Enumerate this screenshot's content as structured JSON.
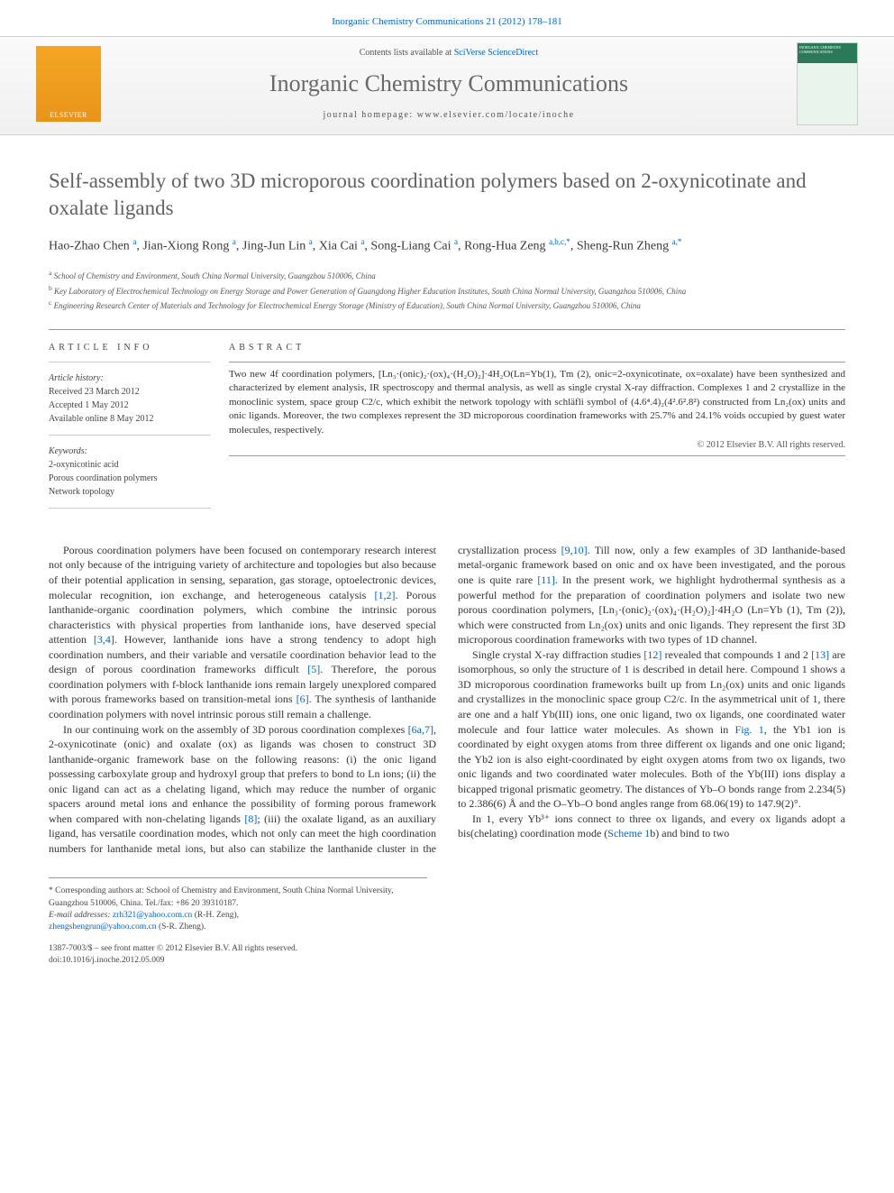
{
  "header": {
    "top_link": "Inorganic Chemistry Communications 21 (2012) 178–181",
    "contents_prefix": "Contents lists available at ",
    "contents_link": "SciVerse ScienceDirect",
    "journal_name": "Inorganic Chemistry Communications",
    "homepage": "journal homepage: www.elsevier.com/locate/inoche",
    "elsevier_label": "ELSEVIER",
    "cover_label": "INORGANIC CHEMISTRY COMMUNICATIONS"
  },
  "article": {
    "title": "Self-assembly of two 3D microporous coordination polymers based on 2-oxynicotinate and oxalate ligands",
    "authors_html": "Hao-Zhao Chen <sup>a</sup>, Jian-Xiong Rong <sup>a</sup>, Jing-Jun Lin <sup>a</sup>, Xia Cai <sup>a</sup>, Song-Liang Cai <sup>a</sup>, Rong-Hua Zeng <sup>a,b,c,*</sup>, Sheng-Run Zheng <sup>a,*</sup>",
    "affiliations": {
      "a": "School of Chemistry and Environment, South China Normal University, Guangzhou 510006, China",
      "b": "Key Laboratory of Electrochemical Technology on Energy Storage and Power Generation of Guangdong Higher Education Institutes, South China Normal University, Guangzhou 510006, China",
      "c": "Engineering Research Center of Materials and Technology for Electrochemical Energy Storage (Ministry of Education), South China Normal University, Guangzhou 510006, China"
    }
  },
  "info": {
    "head": "ARTICLE INFO",
    "history_label": "Article history:",
    "received": "Received 23 March 2012",
    "accepted": "Accepted 1 May 2012",
    "online": "Available online 8 May 2012",
    "keywords_label": "Keywords:",
    "kw1": "2-oxynicotinic acid",
    "kw2": "Porous coordination polymers",
    "kw3": "Network topology"
  },
  "abstract": {
    "head": "ABSTRACT",
    "text": "Two new 4f coordination polymers, [Ln₃·(onic)₂·(ox)₄·(H₂O)₂]·4H₂O(Ln=Yb(1), Tm (2), onic=2-oxynicotinate, ox=oxalate) have been synthesized and characterized by element analysis, IR spectroscopy and thermal analysis, as well as single crystal X-ray diffraction. Complexes 1 and 2 crystallize in the monoclinic system, space group C2/c, which exhibit the network topology with schläfli symbol of (4.6⁴.4)₂(4².6².8²) constructed from Ln₂(ox) units and onic ligands. Moreover, the two complexes represent the 3D microporous coordination frameworks with 25.7% and 24.1% voids occupied by guest water molecules, respectively.",
    "copyright": "© 2012 Elsevier B.V. All rights reserved."
  },
  "body": {
    "p1": "Porous coordination polymers have been focused on contemporary research interest not only because of the intriguing variety of architecture and topologies but also because of their potential application in sensing, separation, gas storage, optoelectronic devices, molecular recognition, ion exchange, and heterogeneous catalysis ",
    "ref1": "[1,2]",
    "p1b": ". Porous lanthanide-organic coordination polymers, which combine the intrinsic porous characteristics with physical properties from lanthanide ions, have deserved special attention ",
    "ref2": "[3,4]",
    "p1c": ". However, lanthanide ions have a strong tendency to adopt high coordination numbers, and their variable and versatile coordination behavior lead to the design of porous coordination frameworks difficult ",
    "ref3": "[5]",
    "p1d": ". Therefore, the porous coordination polymers with f-block lanthanide ions remain largely unexplored compared with porous frameworks based on transition-metal ions ",
    "ref4": "[6]",
    "p1e": ". The synthesis of lanthanide coordination polymers with novel intrinsic porous still remain a challenge.",
    "p2": "In our continuing work on the assembly of 3D porous coordination complexes ",
    "ref5": "[6a,7]",
    "p2b": ", 2-oxynicotinate (onic) and oxalate (ox) as ligands was chosen to construct 3D lanthanide-organic framework base on the following reasons: (i) the onic ligand possessing carboxylate group and hydroxyl group that prefers to bond to Ln ions; (ii) the onic ligand can act as a chelating ligand, which may reduce the number of organic spacers around metal ions and enhance the possibility of forming porous framework when compared with non-chelating ligands ",
    "ref6": "[8]",
    "p2c": "; (iii) the oxalate ligand, as an auxiliary ligand, has versatile coordination modes, which not only can meet the high coordination numbers for lanthanide metal ions, but also can stabilize the lanthanide cluster in the crystallization process ",
    "ref7": "[9,10]",
    "p2d": ". Till now, only a few examples of 3D lanthanide-based metal-organic framework based on onic and ox have been investigated, and the porous one is quite rare ",
    "ref8": "[11]",
    "p2e": ". In the present work, we highlight hydrothermal synthesis as a powerful method for the preparation of coordination polymers and isolate two new porous coordination polymers, [Ln₃·(onic)₂·(ox)₄·(H₂O)₂]·4H₂O (Ln=Yb (1), Tm (2)), which were constructed from Ln₂(ox) units and onic ligands. They represent the first 3D microporous coordination frameworks with two types of 1D channel.",
    "p3": "Single crystal X-ray diffraction studies ",
    "ref9": "[12]",
    "p3b": " revealed that compounds 1 and 2 ",
    "ref10": "[13]",
    "p3c": " are isomorphous, so only the structure of 1 is described in detail here. Compound 1 shows a 3D microporous coordination frameworks built up from Ln₂(ox) units and onic ligands and crystallizes in the monoclinic space group C2/c. In the asymmetrical unit of 1, there are one and a half Yb(III) ions, one onic ligand, two ox ligands, one coordinated water molecule and four lattice water molecules. As shown in ",
    "fig1": "Fig. 1",
    "p3d": ", the Yb1 ion is coordinated by eight oxygen atoms from three different ox ligands and one onic ligand; the Yb2 ion is also eight-coordinated by eight oxygen atoms from two ox ligands, two onic ligands and two coordinated water molecules. Both of the Yb(III) ions display a bicapped trigonal prismatic geometry. The distances of Yb–O bonds range from 2.234(5) to 2.386(6) Å and the O–Yb–O bond angles range from 68.06(19) to 147.9(2)°.",
    "p4": "In 1, every Yb³⁺ ions connect to three ox ligands, and every ox ligands adopt a bis(chelating) coordination mode (",
    "scheme1": "Scheme 1",
    "p4b": "b) and bind to two"
  },
  "footer": {
    "corr": "* Corresponding authors at: School of Chemistry and Environment, South China Normal University, Guangzhou 510006, China. Tel./fax: +86 20 39310187.",
    "email_label": "E-mail addresses: ",
    "email1": "zrh321@yahoo.com.cn",
    "email1_suffix": " (R-H. Zeng),",
    "email2": "zhengshengrun@yahoo.com.cn",
    "email2_suffix": " (S-R. Zheng).",
    "front_matter": "1387-7003/$ – see front matter © 2012 Elsevier B.V. All rights reserved.",
    "doi_label": "doi:",
    "doi": "10.1016/j.inoche.2012.05.009"
  }
}
